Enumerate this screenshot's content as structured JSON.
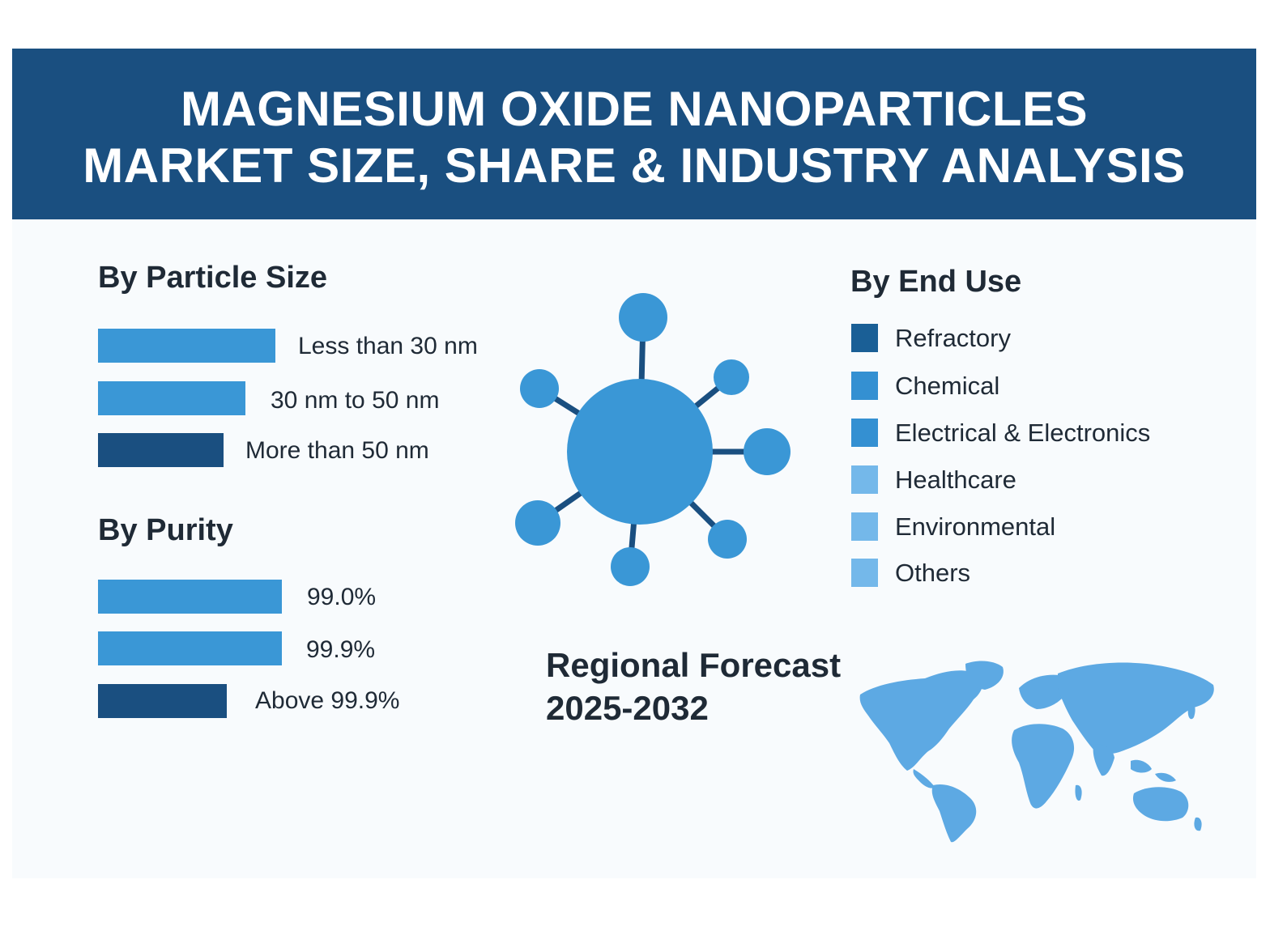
{
  "title": {
    "line1": "MAGNESIUM OXIDE NANOPARTICLES",
    "line2": "MARKET SIZE, SHARE & INDUSTRY ANALYSIS"
  },
  "particle_size": {
    "heading": "By Particle Size",
    "items": [
      {
        "label": "Less than 30 nm",
        "color": "#3a97d6"
      },
      {
        "label": "30 nm to 50 nm",
        "color": "#3a97d6"
      },
      {
        "label": "More than 50 nm",
        "color": "#1a4f80"
      }
    ]
  },
  "purity": {
    "heading": "By Purity",
    "items": [
      {
        "label": "99.0%",
        "color": "#3a97d6"
      },
      {
        "label": "99.9%",
        "color": "#3a97d6"
      },
      {
        "label": "Above 99.9%",
        "color": "#1a4f80"
      }
    ]
  },
  "end_use": {
    "heading": "By End Use",
    "items": [
      {
        "label": "Refractory",
        "color": "#1a5f96"
      },
      {
        "label": "Chemical",
        "color": "#3490d2"
      },
      {
        "label": "Electrical & Electronics",
        "color": "#3490d2"
      },
      {
        "label": "Healthcare",
        "color": "#74b8ea"
      },
      {
        "label": "Environmental",
        "color": "#74b8ea"
      },
      {
        "label": "Others",
        "color": "#74b8ea"
      }
    ]
  },
  "forecast": {
    "line1": "Regional Forecast",
    "line2": "2025-2032"
  },
  "icons": {
    "nanoparticle": "nanoparticle-icon",
    "map": "world-map-icon"
  },
  "colors": {
    "banner": "#1a4f80",
    "accent": "#3a97d6",
    "map": "#5da9e3"
  }
}
